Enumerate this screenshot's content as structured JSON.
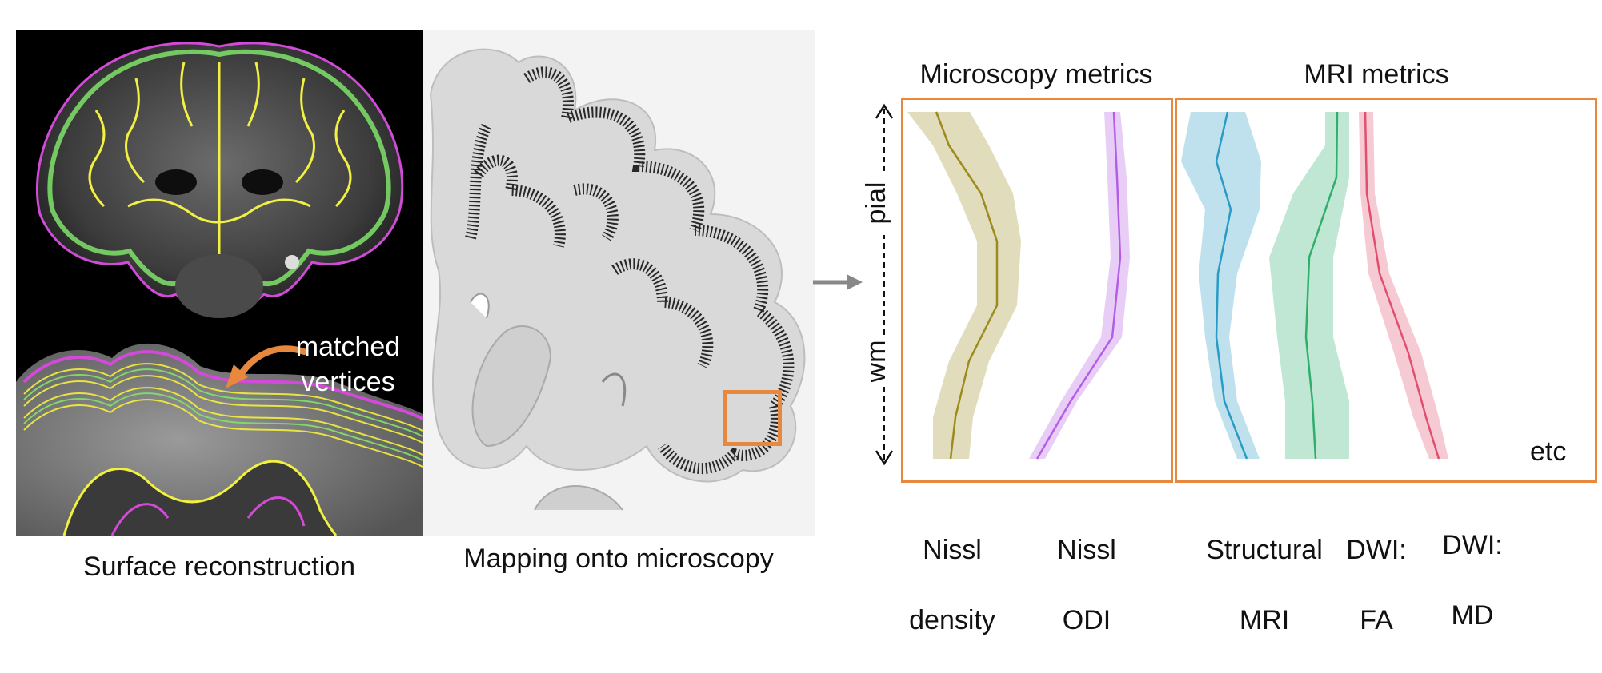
{
  "panels": {
    "surface": {
      "caption": "Surface reconstruction",
      "annotation_line1": "matched",
      "annotation_line2": "vertices"
    },
    "mapping": {
      "caption": "Mapping onto microscopy"
    }
  },
  "colors": {
    "accent_orange": "#e8873e",
    "pial_surface": "#d24ad8",
    "wm_surface": "#f2f040",
    "mid_surface": "#7fe36a",
    "nissl_density": "#9c8a1e",
    "nissl_odi": "#b35ee6",
    "structural_mri": "#2a9bc4",
    "dwi_fa": "#2fae6c",
    "dwi_md": "#e0506e"
  },
  "profiles": {
    "microscopy_title": "Microscopy metrics",
    "mri_title": "MRI metrics",
    "axis_top": "pial",
    "axis_bottom": "wm",
    "etc_label": "etc",
    "metrics": [
      {
        "id": "nissl-density",
        "line1": "Nissl",
        "line2": "density"
      },
      {
        "id": "nissl-odi",
        "line1": "Nissl",
        "line2": "ODI"
      },
      {
        "id": "structural-mri",
        "line1": "Structural",
        "line2": "MRI"
      },
      {
        "id": "dwi-fa",
        "line1": "DWI:",
        "line2": "FA"
      },
      {
        "id": "dwi-md",
        "line1": "DWI:",
        "line2": "MD"
      }
    ]
  }
}
